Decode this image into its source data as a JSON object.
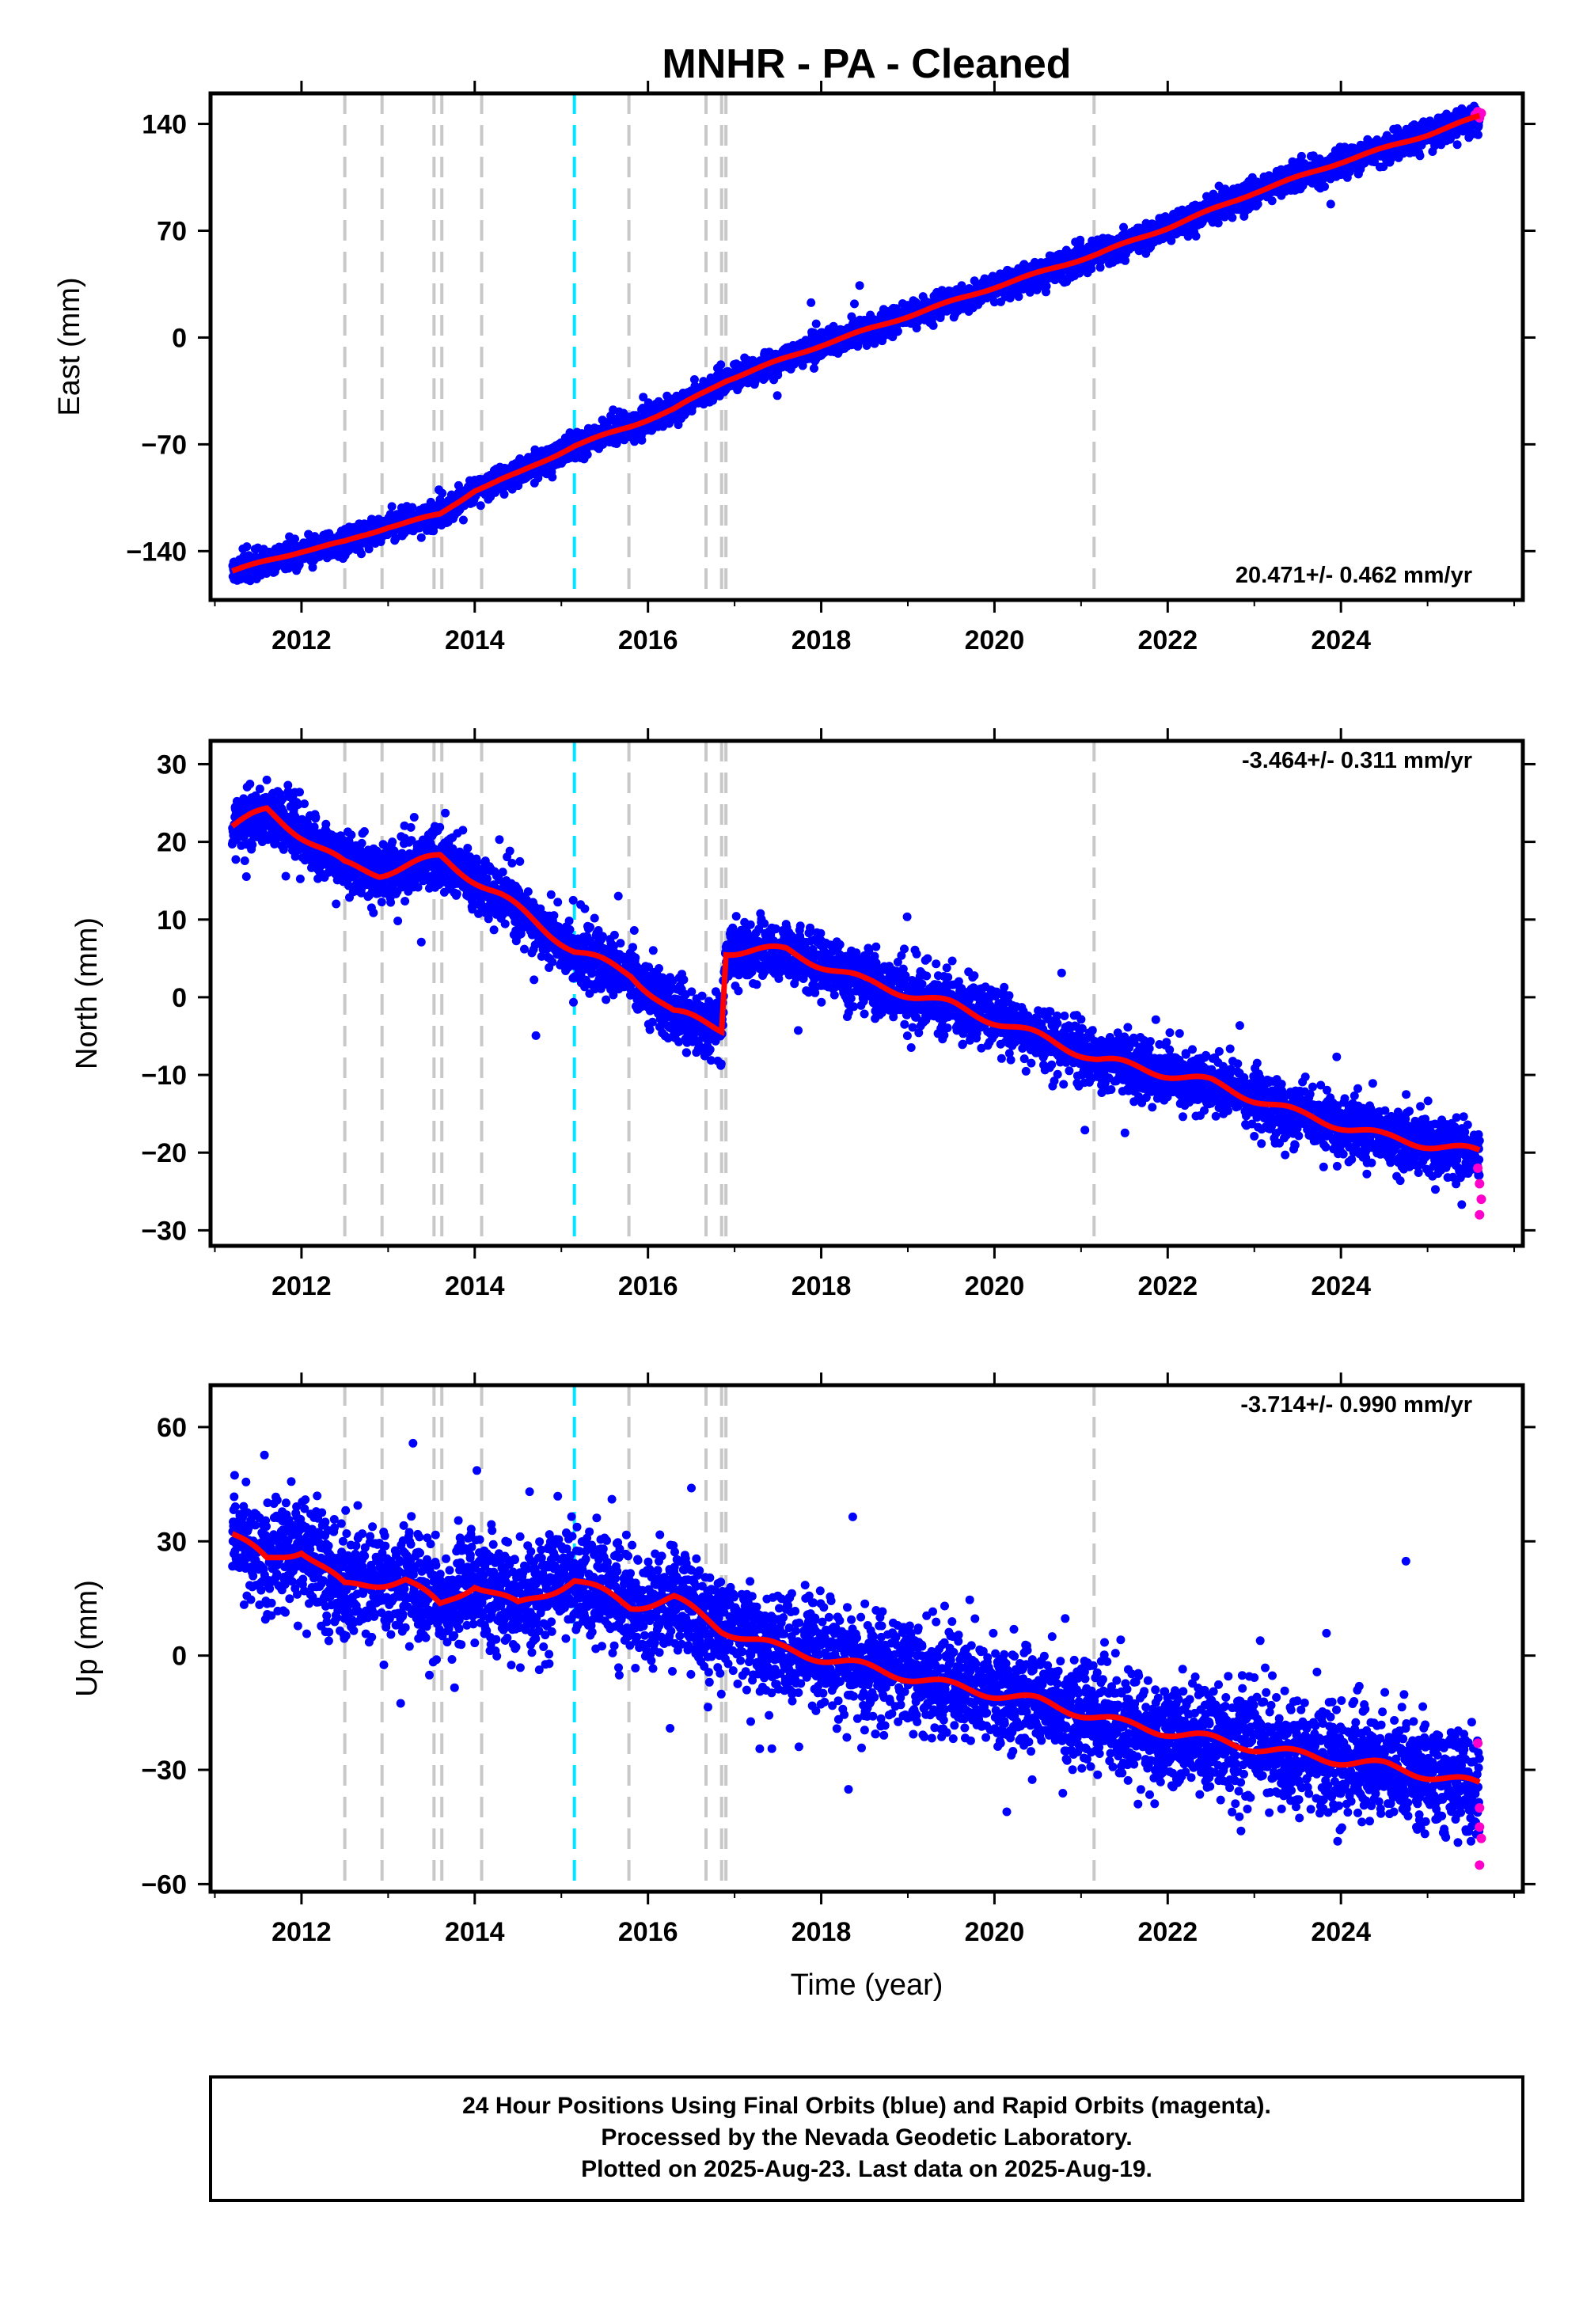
{
  "title": "MNHR  - PA - Cleaned",
  "xlabel": "Time (year)",
  "footer": {
    "line1": "24 Hour Positions Using Final Orbits (blue) and Rapid Orbits (magenta).",
    "line2": "Processed by the Nevada Geodetic Laboratory.",
    "line3": "Plotted on 2025-Aug-23. Last data on 2025-Aug-19."
  },
  "colors": {
    "final_orbits": "#0000ff",
    "rapid_orbits": "#ff00cc",
    "model_fit": "#ff0000",
    "equipment_change": "#c8c8c8",
    "earthquake": "#00e5ff"
  },
  "chart_data": [
    {
      "type": "scatter",
      "component": "east",
      "ylabel": "East (mm)",
      "rate": "20.471+/- 0.462 mm/yr",
      "xlim": [
        2010.95,
        2026.1
      ],
      "ylim": [
        -172,
        160
      ],
      "x_ticks": [
        "2012",
        "2014",
        "2016",
        "2018",
        "2020",
        "2022",
        "2024"
      ],
      "y_ticks": [
        "140",
        "70",
        "0",
        "−70",
        "−140"
      ],
      "y_tick_values": [
        140,
        70,
        0,
        -70,
        -140
      ],
      "grid": false,
      "trend": {
        "t0": 2011.2,
        "v0": -153,
        "rate": 20.471,
        "annual_amp": 3.0,
        "noise_sd": 4.2
      },
      "model_fit_points": [
        [
          2011.2,
          -153
        ],
        [
          2012.0,
          -140
        ],
        [
          2012.5,
          -134
        ],
        [
          2013.0,
          -124
        ],
        [
          2013.6,
          -116
        ],
        [
          2014.0,
          -100
        ],
        [
          2014.5,
          -89
        ],
        [
          2015.15,
          -71
        ],
        [
          2015.8,
          -58
        ],
        [
          2016.3,
          -47
        ],
        [
          2016.9,
          -28
        ],
        [
          2018.0,
          -5
        ],
        [
          2019.0,
          14
        ],
        [
          2020.0,
          33
        ],
        [
          2021.2,
          55
        ],
        [
          2022.0,
          72
        ],
        [
          2023.0,
          95
        ],
        [
          2024.0,
          115
        ],
        [
          2025.0,
          133
        ],
        [
          2025.6,
          145
        ]
      ],
      "rapid_points": [
        [
          2025.55,
          146
        ],
        [
          2025.58,
          148
        ],
        [
          2025.6,
          144
        ],
        [
          2025.62,
          147
        ]
      ]
    },
    {
      "type": "scatter",
      "component": "north",
      "ylabel": "North (mm)",
      "rate": "-3.464+/- 0.311 mm/yr",
      "xlim": [
        2010.95,
        2026.1
      ],
      "ylim": [
        -32,
        33
      ],
      "x_ticks": [
        "2012",
        "2014",
        "2016",
        "2018",
        "2020",
        "2022",
        "2024"
      ],
      "y_ticks": [
        "30",
        "20",
        "10",
        "0",
        "−10",
        "−20",
        "−30"
      ],
      "y_tick_values": [
        30,
        20,
        10,
        0,
        -10,
        -20,
        -30
      ],
      "grid": false,
      "trend": {
        "t0": 2011.2,
        "v0": 22,
        "rate": -3.464,
        "annual_amp": 2.3,
        "noise_sd": 1.9
      },
      "model_fit_points": [
        [
          2011.2,
          22
        ],
        [
          2011.6,
          24
        ],
        [
          2012.5,
          17
        ],
        [
          2012.9,
          16
        ],
        [
          2013.6,
          18
        ],
        [
          2014.3,
          13
        ],
        [
          2015.15,
          6
        ],
        [
          2015.8,
          3
        ],
        [
          2016.3,
          -2
        ],
        [
          2016.85,
          -4
        ],
        [
          2016.9,
          6
        ],
        [
          2017.6,
          6
        ],
        [
          2018.5,
          2
        ],
        [
          2019.5,
          -1
        ],
        [
          2020.5,
          -5
        ],
        [
          2021.2,
          -8
        ],
        [
          2022.5,
          -11
        ],
        [
          2023.5,
          -15
        ],
        [
          2024.5,
          -18
        ],
        [
          2025.6,
          -20
        ]
      ],
      "rapid_points": [
        [
          2025.58,
          -22
        ],
        [
          2025.6,
          -24
        ],
        [
          2025.62,
          -26
        ],
        [
          2025.6,
          -28
        ]
      ]
    },
    {
      "type": "scatter",
      "component": "up",
      "ylabel": "Up (mm)",
      "rate": "-3.714+/- 0.990 mm/yr",
      "xlim": [
        2010.95,
        2026.1
      ],
      "ylim": [
        -62,
        71
      ],
      "x_ticks": [
        "2012",
        "2014",
        "2016",
        "2018",
        "2020",
        "2022",
        "2024"
      ],
      "y_ticks": [
        "60",
        "30",
        "0",
        "−30",
        "−60"
      ],
      "y_tick_values": [
        60,
        30,
        0,
        -30,
        -60
      ],
      "grid": false,
      "trend": {
        "t0": 2011.2,
        "v0": 28,
        "rate": -3.714,
        "annual_amp": 5.0,
        "noise_sd": 7.0
      },
      "model_fit_points": [
        [
          2011.2,
          32
        ],
        [
          2011.6,
          25
        ],
        [
          2012.0,
          28
        ],
        [
          2012.5,
          18
        ],
        [
          2013.2,
          20
        ],
        [
          2013.6,
          13
        ],
        [
          2014.0,
          19
        ],
        [
          2014.5,
          13
        ],
        [
          2015.15,
          20
        ],
        [
          2015.8,
          13
        ],
        [
          2016.3,
          15
        ],
        [
          2016.85,
          7
        ],
        [
          2017.5,
          2
        ],
        [
          2018.5,
          -3
        ],
        [
          2019.5,
          -8
        ],
        [
          2020.5,
          -12
        ],
        [
          2021.5,
          -18
        ],
        [
          2022.5,
          -22
        ],
        [
          2023.5,
          -26
        ],
        [
          2024.5,
          -29
        ],
        [
          2025.6,
          -34
        ]
      ],
      "rapid_points": [
        [
          2025.58,
          -23
        ],
        [
          2025.6,
          -40
        ],
        [
          2025.6,
          -45
        ],
        [
          2025.62,
          -48
        ],
        [
          2025.6,
          -55
        ]
      ]
    }
  ],
  "equipment_change_years": [
    2012.5,
    2012.93,
    2013.53,
    2013.62,
    2014.08,
    2015.78,
    2016.67,
    2016.85,
    2016.9,
    2021.15
  ],
  "earthquake_years": [
    2015.15
  ]
}
